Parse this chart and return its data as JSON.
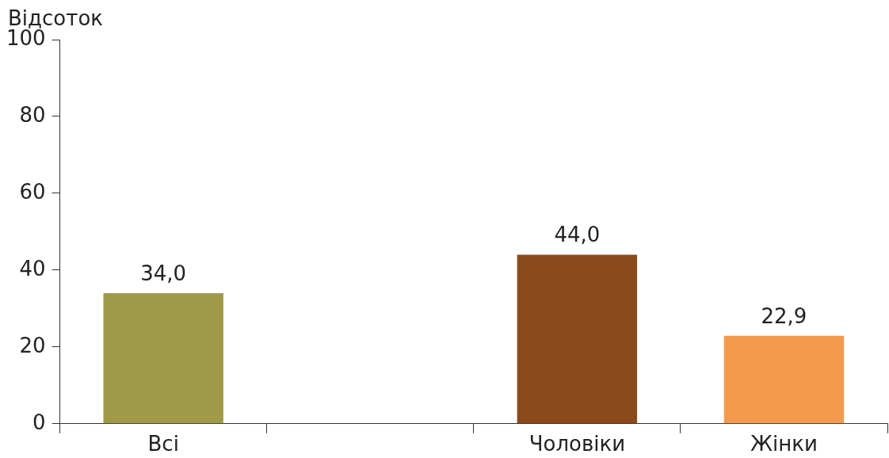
{
  "chart_data": {
    "type": "bar",
    "ylabel": "Відсоток",
    "categories": [
      "Всі",
      null,
      "Чоловіки",
      "Жінки"
    ],
    "values": [
      34.0,
      null,
      44.0,
      22.9
    ],
    "colors": [
      "#a09a48",
      null,
      "#8a4a1c",
      "#f49a4c"
    ],
    "value_labels": [
      "34,0",
      null,
      "44,0",
      "22,9"
    ],
    "ylim": [
      0,
      100
    ],
    "yticks": [
      0,
      20,
      40,
      60,
      80,
      100
    ],
    "grid": false,
    "legend": false
  }
}
